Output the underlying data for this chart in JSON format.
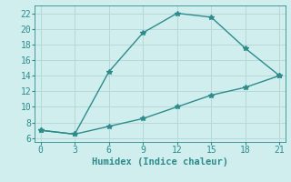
{
  "line1_x": [
    0,
    3,
    6,
    9,
    12,
    15,
    18,
    21
  ],
  "line1_y": [
    7,
    6.5,
    14.5,
    19.5,
    22,
    21.5,
    17.5,
    14
  ],
  "line2_x": [
    0,
    3,
    6,
    9,
    12,
    15,
    18,
    21
  ],
  "line2_y": [
    7,
    6.5,
    7.5,
    8.5,
    10,
    11.5,
    12.5,
    14
  ],
  "line_color": "#2e8b8b",
  "bg_color": "#d0eeee",
  "grid_color": "#b8d8d8",
  "xlabel": "Humidex (Indice chaleur)",
  "xlim": [
    -0.5,
    21.5
  ],
  "ylim": [
    5.5,
    23
  ],
  "xticks": [
    0,
    3,
    6,
    9,
    12,
    15,
    18,
    21
  ],
  "yticks": [
    6,
    8,
    10,
    12,
    14,
    16,
    18,
    20,
    22
  ],
  "xlabel_fontsize": 7.5,
  "tick_fontsize": 7,
  "marker": "*",
  "markersize": 4,
  "linewidth": 1.0
}
